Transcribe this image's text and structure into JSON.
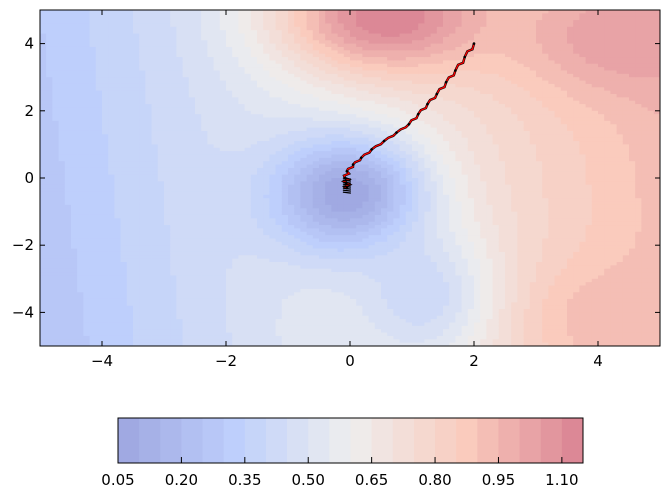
{
  "chart_data": {
    "type": "contour",
    "description_of_marks": "filled contour map of a scalar field with an optimization trajectory overlay",
    "xlim": [
      -5,
      5
    ],
    "ylim": [
      -5,
      5
    ],
    "x_ticks": [
      -4,
      -2,
      0,
      2,
      4
    ],
    "x_tick_labels": [
      "−4",
      "−2",
      "0",
      "2",
      "4"
    ],
    "y_ticks": [
      4,
      2,
      0,
      -2,
      -4
    ],
    "y_tick_labels": [
      "4",
      "2",
      "0",
      "−2",
      "−4"
    ],
    "grid": false,
    "title": "",
    "xlabel": "",
    "ylabel": "",
    "colormap": "coolwarm",
    "colorbar": {
      "orientation": "horizontal",
      "placement": "bottom",
      "range": [
        0.05,
        1.15
      ],
      "levels": 22,
      "tick_values": [
        0.05,
        0.2,
        0.35,
        0.5,
        0.65,
        0.8,
        0.95,
        1.1
      ],
      "tick_labels": [
        "0.05",
        "0.20",
        "0.35",
        "0.50",
        "0.65",
        "0.80",
        "0.95",
        "1.10"
      ]
    },
    "field_features": [
      {
        "kind": "minimum",
        "x": -0.05,
        "y": -0.5,
        "value": 0.05
      },
      {
        "kind": "maximum",
        "x": 0.6,
        "y": 4.8,
        "value": 1.15
      },
      {
        "kind": "high_region",
        "x": 4.5,
        "y": 4.2,
        "value": 1.05
      },
      {
        "kind": "high_region",
        "x": 4.5,
        "y": -4.2,
        "value": 0.95
      },
      {
        "kind": "low_tongue",
        "x": 1.2,
        "y": -3.5,
        "value": 0.3
      }
    ],
    "trajectory": {
      "color": "#ff0000",
      "marker_color": "#000000",
      "start": [
        2.0,
        4.0
      ],
      "end": [
        -0.05,
        -0.3
      ],
      "points": [
        [
          2.0,
          4.0
        ],
        [
          1.85,
          3.6
        ],
        [
          1.7,
          3.2
        ],
        [
          1.55,
          2.85
        ],
        [
          1.4,
          2.5
        ],
        [
          1.25,
          2.2
        ],
        [
          1.1,
          1.9
        ],
        [
          0.95,
          1.6
        ],
        [
          0.75,
          1.35
        ],
        [
          0.55,
          1.1
        ],
        [
          0.35,
          0.85
        ],
        [
          0.18,
          0.6
        ],
        [
          0.05,
          0.4
        ],
        [
          -0.05,
          0.2
        ],
        [
          -0.08,
          0.0
        ],
        [
          -0.06,
          -0.15
        ],
        [
          -0.05,
          -0.3
        ]
      ]
    }
  }
}
